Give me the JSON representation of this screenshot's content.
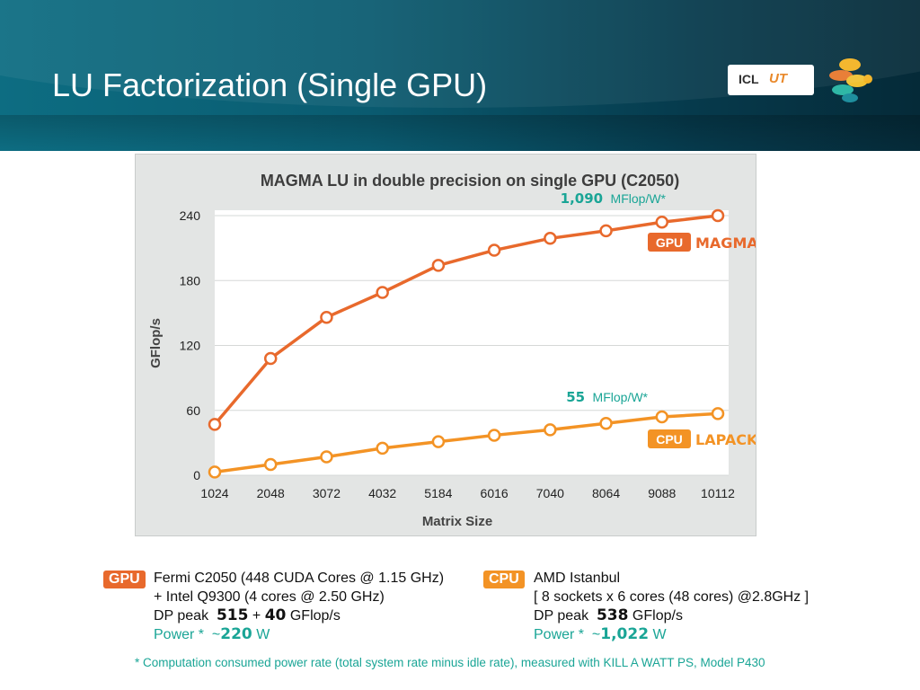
{
  "slide": {
    "title": "LU Factorization (Single GPU)",
    "logo_icl": "ICL",
    "logo_ut": "UT"
  },
  "chart_data": {
    "type": "line",
    "title": "MAGMA LU in double precision on single GPU (C2050)",
    "xlabel": "Matrix Size",
    "ylabel": "GFlop/s",
    "categories": [
      "1024",
      "2048",
      "3072",
      "4032",
      "5184",
      "6016",
      "7040",
      "8064",
      "9088",
      "10112"
    ],
    "yticks": [
      0,
      60,
      120,
      180,
      240
    ],
    "ylim": [
      0,
      245
    ],
    "grid": true,
    "series": [
      {
        "name": "MAGMA",
        "badge": "GPU",
        "color": "#e8692c",
        "values": [
          47,
          108,
          146,
          169,
          194,
          208,
          219,
          226,
          234,
          240
        ],
        "annotation_value": "1,090",
        "annotation_unit": "MFlop/W*"
      },
      {
        "name": "LAPACK",
        "badge": "CPU",
        "color": "#f39325",
        "values": [
          3,
          10,
          17,
          25,
          31,
          37,
          42,
          48,
          54,
          57
        ],
        "annotation_value": "55",
        "annotation_unit": "MFlop/W*"
      }
    ]
  },
  "specs": {
    "gpu": {
      "badge": "GPU",
      "line1": "Fermi C2050 (448 CUDA Cores @ 1.15 GHz)",
      "line2": "+ Intel Q9300 (4 cores @ 2.50 GHz)",
      "dp_label": "DP peak",
      "dp_a": "515",
      "dp_plus": "+",
      "dp_b": "40",
      "dp_unit": "GFlop/s",
      "power_label": "Power *",
      "power_tilde": "~",
      "power_value": "220",
      "power_unit": "W"
    },
    "cpu": {
      "badge": "CPU",
      "line1": "AMD Istanbul",
      "line2": "[ 8 sockets x 6 cores (48 cores) @2.8GHz ]",
      "dp_label": "DP peak",
      "dp_value": "538",
      "dp_unit": "GFlop/s",
      "power_label": "Power *",
      "power_tilde": "~",
      "power_value": "1,022",
      "power_unit": "W"
    }
  },
  "footnote": "* Computation consumed power rate (total system rate minus idle rate), measured with KILL A WATT PS, Model P430",
  "colors": {
    "header": "#0a5b70",
    "gpu": "#e8692c",
    "cpu": "#f39325",
    "teal": "#1aa596"
  }
}
